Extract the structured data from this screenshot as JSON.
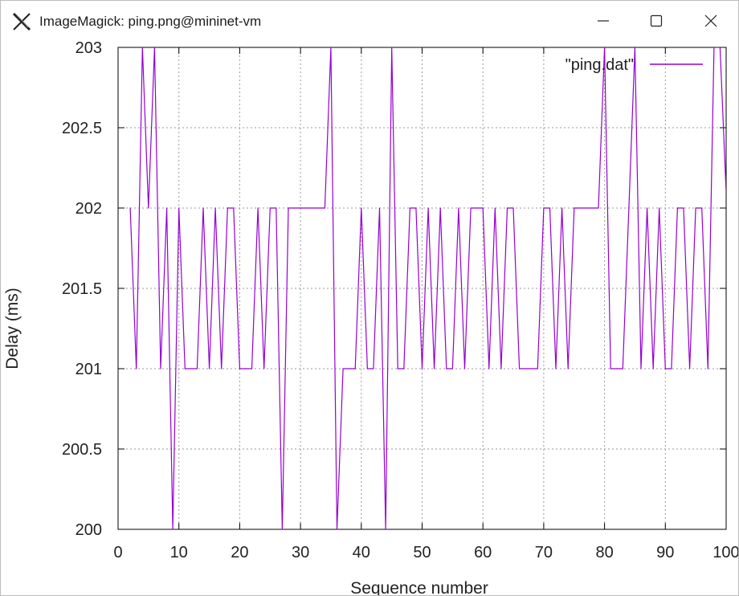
{
  "window": {
    "title": "ImageMagick: ping.png@mininet-vm",
    "icons": {
      "app": "imagemagick-x-logo-icon",
      "minimize": "minimize-icon",
      "maximize": "maximize-icon",
      "close": "close-icon"
    }
  },
  "chart_data": {
    "type": "line",
    "xlabel": "Sequence number",
    "ylabel": "Delay (ms)",
    "xlim": [
      0,
      100
    ],
    "ylim": [
      200,
      203
    ],
    "x_ticks": [
      "0",
      "10",
      "20",
      "30",
      "40",
      "50",
      "60",
      "70",
      "80",
      "90",
      "100"
    ],
    "y_ticks": [
      "200",
      "200.5",
      "201",
      "201.5",
      "202",
      "202.5",
      "203"
    ],
    "grid": true,
    "legend": {
      "position": "top-right",
      "entries": [
        "\"ping.dat\""
      ]
    },
    "series": [
      {
        "name": "\"ping.dat\"",
        "color": "#9400d3",
        "x": [
          2,
          3,
          4,
          5,
          6,
          7,
          8,
          9,
          10,
          11,
          12,
          13,
          14,
          15,
          16,
          17,
          18,
          19,
          20,
          21,
          22,
          23,
          24,
          25,
          26,
          27,
          28,
          29,
          30,
          31,
          32,
          33,
          34,
          35,
          36,
          37,
          38,
          39,
          40,
          41,
          42,
          43,
          44,
          45,
          46,
          47,
          48,
          49,
          50,
          51,
          52,
          53,
          54,
          55,
          56,
          57,
          58,
          59,
          60,
          61,
          62,
          63,
          64,
          65,
          66,
          67,
          68,
          69,
          70,
          71,
          72,
          73,
          74,
          75,
          76,
          77,
          78,
          79,
          80,
          81,
          82,
          83,
          84,
          85,
          86,
          87,
          88,
          89,
          90,
          91,
          92,
          93,
          94,
          95,
          96,
          97,
          98,
          99,
          100
        ],
        "values": [
          202,
          201,
          203,
          202,
          203,
          201,
          202,
          200,
          202,
          201,
          201,
          201,
          202,
          201,
          202,
          201,
          202,
          202,
          201,
          201,
          201,
          202,
          201,
          202,
          202,
          200,
          202,
          202,
          202,
          202,
          202,
          202,
          202,
          203,
          200,
          201,
          201,
          201,
          202,
          201,
          201,
          202,
          200,
          203,
          201,
          201,
          202,
          202,
          201,
          202,
          201,
          202,
          201,
          201,
          202,
          201,
          202,
          202,
          202,
          201,
          202,
          201,
          202,
          202,
          201,
          201,
          201,
          201,
          202,
          202,
          201,
          202,
          201,
          202,
          202,
          202,
          202,
          202,
          203,
          201,
          201,
          201,
          202,
          203,
          201,
          202,
          201,
          202,
          201,
          201,
          202,
          202,
          201,
          202,
          202,
          201,
          203,
          203,
          202.1
        ]
      }
    ]
  }
}
